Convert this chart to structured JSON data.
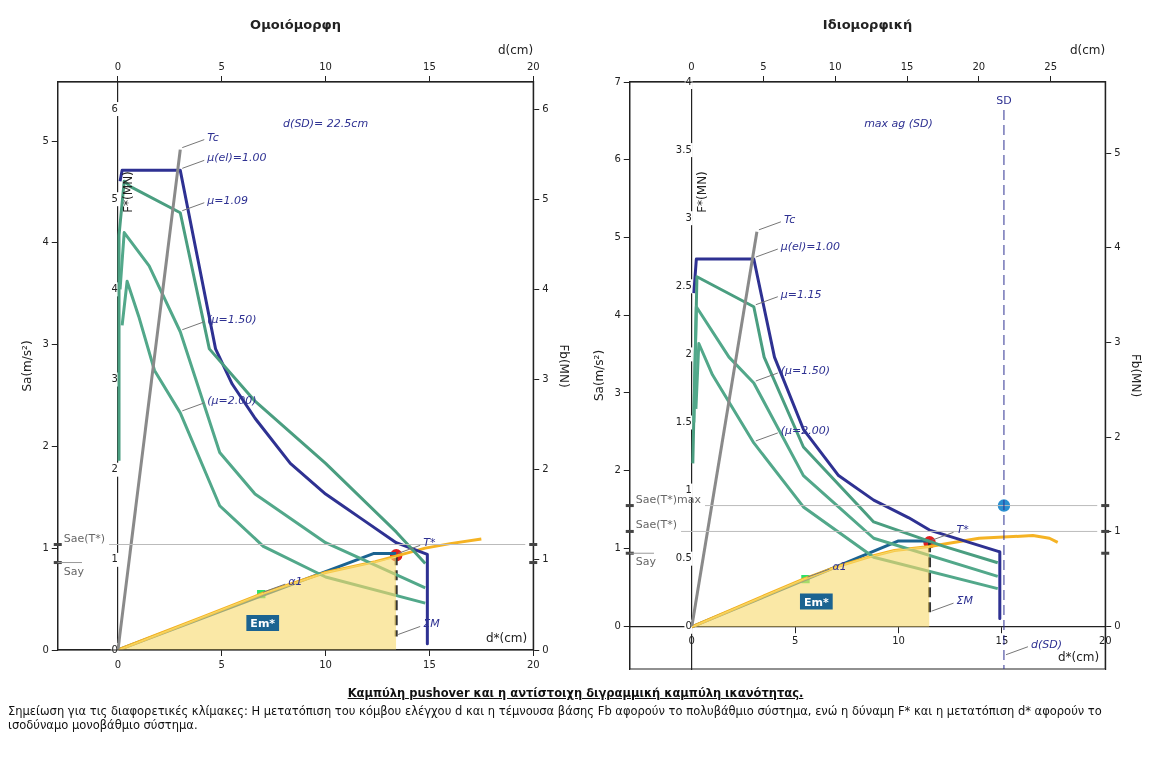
{
  "chart_data": [
    {
      "type": "line",
      "title": "Ομοιόμορφη",
      "xlabel": "d*(cm)",
      "x2label": "d(cm)",
      "ylabel": "F*(MN)",
      "y2label": "Fb(MN)",
      "y3label": "Sa(m/s²)",
      "marker": "none",
      "xlim": [
        -2.9,
        20
      ],
      "xticks": [
        0,
        5,
        10,
        15,
        20
      ],
      "x2lim": [
        -2.9,
        20
      ],
      "x2ticks": [
        0,
        5,
        10,
        15,
        20
      ],
      "ylim": [
        0,
        6.3
      ],
      "yticks": [
        0,
        1,
        2,
        3,
        4,
        5,
        6
      ],
      "y2lim": [
        0,
        6.3
      ],
      "y2ticks": [
        0,
        1,
        2,
        3,
        4,
        5,
        6
      ],
      "y3lim": [
        0,
        5.58
      ],
      "y3ticks": [
        0,
        1,
        2,
        3,
        4,
        5
      ],
      "series": [
        {
          "type": "area",
          "name": "Em*",
          "color": "#f7d96a",
          "x": [
            0,
            2,
            4,
            7,
            10,
            12.4,
            13.4
          ],
          "values": [
            0,
            0.18,
            0.36,
            0.63,
            0.86,
            0.98,
            1.03
          ]
        },
        {
          "type": "line",
          "color": "#8a8a8a",
          "x": [
            0,
            3.0
          ],
          "values": [
            0,
            5.55
          ]
        },
        {
          "type": "line",
          "color": "#52a88a",
          "x": [
            0.2,
            0.44,
            1.0,
            1.76,
            3.0,
            4.9,
            7.0,
            10.0,
            14.8
          ],
          "values": [
            3.6,
            4.09,
            3.7,
            3.1,
            2.63,
            1.6,
            1.15,
            0.81,
            0.52
          ]
        },
        {
          "type": "line",
          "color": "#52a88a",
          "x": [
            0.1,
            0.3,
            1.5,
            3.0,
            4.9,
            6.6,
            10.0,
            14.8
          ],
          "values": [
            4.0,
            4.63,
            4.26,
            3.53,
            2.19,
            1.73,
            1.19,
            0.69
          ]
        },
        {
          "type": "line",
          "color": "#4a9e80",
          "x": [
            0.05,
            0.05,
            0.3,
            0.6,
            3.0,
            4.4,
            6.6,
            10.0,
            13.4,
            14.8
          ],
          "values": [
            2.1,
            4.6,
            5.2,
            5.14,
            4.85,
            3.34,
            2.76,
            2.07,
            1.31,
            0.96
          ]
        },
        {
          "type": "line",
          "color": "#2e3192",
          "x": [
            0.1,
            0.2,
            3.0,
            4.7,
            5.5,
            6.6,
            8.3,
            10.0,
            11.7,
            13.4,
            14.9,
            14.9
          ],
          "values": [
            5.2,
            5.32,
            5.32,
            3.34,
            2.95,
            2.57,
            2.07,
            1.73,
            1.46,
            1.19,
            1.06,
            0.07
          ]
        },
        {
          "type": "line",
          "color": "#f5b324",
          "x": [
            0,
            2,
            4,
            7,
            10,
            12.4,
            14.8,
            16,
            17.5
          ],
          "values": [
            0,
            0.18,
            0.36,
            0.63,
            0.86,
            0.98,
            1.13,
            1.18,
            1.23
          ]
        },
        {
          "type": "line",
          "color": "#1b6391",
          "x": [
            0,
            12.3,
            13.4
          ],
          "values": [
            0,
            1.07,
            1.07
          ]
        },
        {
          "type": "line",
          "color": "#333333",
          "line_style": "dashed",
          "x": [
            13.4,
            13.4
          ],
          "values": [
            1.05,
            0.15
          ]
        },
        {
          "type": "scatter",
          "color": "#2ee06a",
          "marker": "square",
          "x": [
            6.9
          ],
          "values": [
            0.62
          ]
        },
        {
          "type": "scatter",
          "color": "#e02020",
          "marker": "circle",
          "x": [
            13.4
          ],
          "values": [
            1.05
          ]
        }
      ],
      "ref_lines": [
        {
          "axis": "y",
          "value": 1.17,
          "label": "Sae(T*)",
          "color": "#bbbbbb"
        },
        {
          "axis": "y",
          "value": 0.97,
          "label": "Say"
        }
      ],
      "annotations": [
        "d(SD)= 22.5cm",
        {
          "text": "Tc",
          "x": 3.0,
          "y": 5.55
        },
        {
          "text": "μ(el)=1.00",
          "x": 3.0,
          "y": 5.32
        },
        {
          "text": "μ=1.09",
          "x": 3.0,
          "y": 4.85
        },
        {
          "text": "(μ=1.50)",
          "x": 3.0,
          "y": 3.53
        },
        {
          "text": "(μ=2.00)",
          "x": 3.0,
          "y": 2.63
        },
        {
          "text": "T*",
          "x": 13.4,
          "y": 1.05
        },
        {
          "text": "α1",
          "x": 6.9,
          "y": 0.62
        },
        {
          "text": "ΣM",
          "x": 13.4,
          "y": 0.15
        }
      ]
    },
    {
      "type": "line",
      "title": "Ιδιομορφική",
      "xlabel": "d*(cm)",
      "x2label": "d(cm)",
      "ylabel": "F*(MN)",
      "y2label": "Fb(MN)",
      "y3label": "Sa(m/s²)",
      "marker": "none",
      "xlim": [
        -3.0,
        20
      ],
      "xticks": [
        0,
        5,
        10,
        15,
        20
      ],
      "x2lim": [
        -4.3,
        28.8
      ],
      "x2ticks": [
        0,
        5,
        10,
        15,
        20,
        25
      ],
      "ylim": [
        -0.31,
        4
      ],
      "yticks": [
        0,
        0.5,
        1,
        1.5,
        2,
        2.5,
        3,
        3.5,
        4
      ],
      "y2lim": [
        -0.45,
        5.75
      ],
      "y2ticks": [
        0,
        1,
        2,
        3,
        4,
        5
      ],
      "y3lim": [
        -0.55,
        7
      ],
      "y3ticks": [
        0,
        1,
        2,
        3,
        4,
        5,
        6,
        7
      ],
      "series": [
        {
          "type": "area",
          "name": "Em*",
          "color": "#f7d96a",
          "x": [
            0,
            2,
            4,
            5.4,
            7,
            8.5,
            9.8,
            11.5
          ],
          "values": [
            0,
            0.13,
            0.26,
            0.35,
            0.44,
            0.51,
            0.56,
            0.59
          ]
        },
        {
          "type": "line",
          "color": "#8a8a8a",
          "x": [
            0,
            3.15
          ],
          "values": [
            0,
            2.9
          ]
        },
        {
          "type": "line",
          "color": "#52a88a",
          "x": [
            0.2,
            0.34,
            1.0,
            3.0,
            5.4,
            8.8,
            14.8
          ],
          "values": [
            1.6,
            2.08,
            1.85,
            1.35,
            0.88,
            0.51,
            0.28
          ]
        },
        {
          "type": "line",
          "color": "#52a88a",
          "x": [
            0.1,
            0.22,
            1.8,
            3.0,
            5.4,
            8.8,
            14.8
          ],
          "values": [
            1.5,
            2.35,
            1.98,
            1.79,
            1.11,
            0.65,
            0.37
          ]
        },
        {
          "type": "line",
          "color": "#4a9e80",
          "x": [
            0.05,
            0.25,
            3.0,
            3.5,
            5.4,
            8.8,
            12.2,
            14.8
          ],
          "values": [
            1.2,
            2.57,
            2.35,
            1.98,
            1.32,
            0.77,
            0.59,
            0.47
          ]
        },
        {
          "type": "line",
          "color": "#2e3192",
          "x": [
            0.1,
            0.22,
            3.0,
            4.0,
            5.4,
            7.1,
            8.8,
            10.5,
            11.5,
            14.9,
            14.9
          ],
          "values": [
            2.45,
            2.7,
            2.7,
            1.98,
            1.45,
            1.11,
            0.93,
            0.8,
            0.71,
            0.55,
            0.06
          ]
        },
        {
          "type": "line",
          "color": "#f5b324",
          "x": [
            0,
            2,
            4,
            5.4,
            7,
            8.5,
            9.8,
            11.5,
            13.9,
            16.5,
            17.3,
            17.7
          ],
          "values": [
            0,
            0.13,
            0.26,
            0.35,
            0.44,
            0.51,
            0.56,
            0.59,
            0.65,
            0.67,
            0.65,
            0.62
          ]
        },
        {
          "type": "line",
          "color": "#1b6391",
          "x": [
            0,
            10.0,
            11.5
          ],
          "values": [
            0,
            0.63,
            0.63
          ]
        },
        {
          "type": "line",
          "color": "#333333",
          "line_style": "dashed",
          "x": [
            11.5,
            11.5
          ],
          "values": [
            0.62,
            0.1
          ]
        },
        {
          "type": "scatter",
          "color": "#2ee06a",
          "marker": "square",
          "x": [
            5.5
          ],
          "values": [
            0.35
          ]
        },
        {
          "type": "scatter",
          "color": "#2a8fd0",
          "marker": "circle",
          "x": [
            15.1
          ],
          "values": [
            0.89
          ]
        },
        {
          "type": "scatter",
          "color": "#e02020",
          "marker": "circle",
          "x": [
            11.5
          ],
          "values": [
            0.62
          ]
        }
      ],
      "ref_lines": [
        {
          "axis": "y",
          "value": 0.89,
          "label": "Sae(T*)max",
          "color": "#bbbbbb"
        },
        {
          "axis": "y",
          "value": 0.7,
          "label": "Sae(T*)",
          "color": "#bbbbbb"
        },
        {
          "axis": "y",
          "value": 0.54,
          "label": "Say"
        },
        {
          "axis": "x",
          "value": 15.1,
          "label": "SD",
          "color": "#2e3192",
          "line_style": "dashed"
        }
      ],
      "annotations": [
        "max ag (SD)",
        {
          "text": "Tc",
          "x": 3.15,
          "y": 2.9
        },
        {
          "text": "μ(el)=1.00",
          "x": 3.0,
          "y": 2.7
        },
        {
          "text": "μ=1.15",
          "x": 3.0,
          "y": 2.35
        },
        {
          "text": "(μ=1.50)",
          "x": 3.0,
          "y": 1.79
        },
        {
          "text": "(μ=2.00)",
          "x": 3.0,
          "y": 1.35
        },
        {
          "text": "T*",
          "x": 11.5,
          "y": 0.62
        },
        {
          "text": "α1",
          "x": 5.5,
          "y": 0.35
        },
        {
          "text": "ΣM",
          "x": 11.5,
          "y": 0.1
        },
        {
          "text": "d(SD)",
          "x": 15.1,
          "y": -0.22
        }
      ]
    },
    {
      "type": "other",
      "title": "Καμπύλη pushover και η αντίστοιχη διγραμμική καμπύλη ικανότητας.",
      "annotations": [
        "Σημείωση για τις διαφορετικές κλίμακες: Η μετατόπιση του κόμβου ελέγχου d και η τέμνουσα βάσης Fb αφορούν το πολυβάθμιο σύστημα, ενώ η δύναμη F* και η μετατόπιση d* αφορούν το ισοδύναμο μονοβάθμιο σύστημα."
      ]
    }
  ]
}
